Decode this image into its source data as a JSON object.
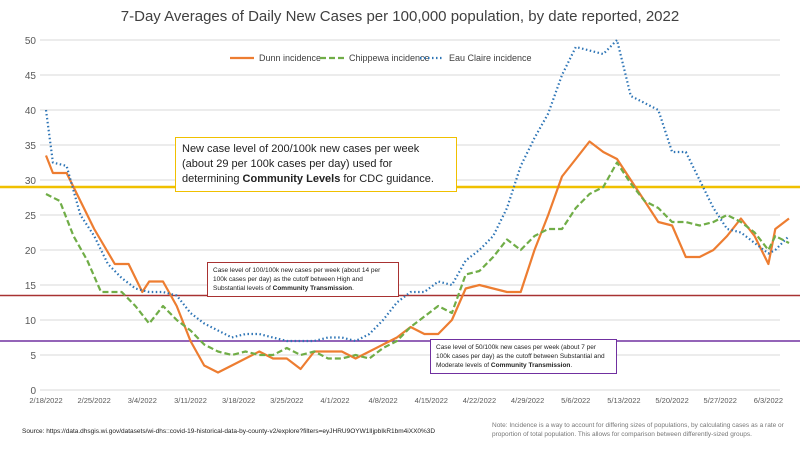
{
  "chart_data": {
    "type": "line",
    "title": "7-Day Averages of Daily New Cases per 100,000 population, by date reported, 2022",
    "xlabel": "",
    "ylabel": "",
    "ylim": [
      0,
      50
    ],
    "yticks": [
      "0",
      "5",
      "10",
      "15",
      "20",
      "25",
      "30",
      "35",
      "40",
      "45",
      "50"
    ],
    "xticks": [
      "2/18/2022",
      "2/25/2022",
      "3/4/2022",
      "3/11/2022",
      "3/18/2022",
      "3/25/2022",
      "4/1/2022",
      "4/8/2022",
      "4/15/2022",
      "4/22/2022",
      "4/29/2022",
      "5/6/2022",
      "5/13/2022",
      "5/20/2022",
      "5/27/2022",
      "6/3/2022"
    ],
    "grid": true,
    "legend_position": "top",
    "series": [
      {
        "name": "Dunn incidence",
        "color": "#ed7d31",
        "style": "solid",
        "points": [
          [
            "2/18",
            33.5
          ],
          [
            "2/19",
            31
          ],
          [
            "2/21",
            31
          ],
          [
            "2/23",
            27
          ],
          [
            "2/25",
            23
          ],
          [
            "2/28",
            18
          ],
          [
            "3/2",
            18
          ],
          [
            "3/4",
            14
          ],
          [
            "3/5",
            15.5
          ],
          [
            "3/7",
            15.5
          ],
          [
            "3/9",
            12
          ],
          [
            "3/11",
            7
          ],
          [
            "3/13",
            3.5
          ],
          [
            "3/15",
            2.5
          ],
          [
            "3/17",
            3.5
          ],
          [
            "3/19",
            4.5
          ],
          [
            "3/21",
            5.5
          ],
          [
            "3/23",
            4.5
          ],
          [
            "3/25",
            4.5
          ],
          [
            "3/27",
            3
          ],
          [
            "3/29",
            5.5
          ],
          [
            "3/31",
            5.5
          ],
          [
            "4/2",
            5.5
          ],
          [
            "4/4",
            4.5
          ],
          [
            "4/6",
            5.5
          ],
          [
            "4/8",
            6.5
          ],
          [
            "4/10",
            7.5
          ],
          [
            "4/12",
            9
          ],
          [
            "4/14",
            8
          ],
          [
            "4/16",
            8
          ],
          [
            "4/18",
            10
          ],
          [
            "4/20",
            14.5
          ],
          [
            "4/22",
            15
          ],
          [
            "4/24",
            14.5
          ],
          [
            "4/26",
            14
          ],
          [
            "4/28",
            14
          ],
          [
            "4/30",
            20
          ],
          [
            "5/2",
            25
          ],
          [
            "5/4",
            30.5
          ],
          [
            "5/6",
            33
          ],
          [
            "5/8",
            35.5
          ],
          [
            "5/10",
            34
          ],
          [
            "5/12",
            33
          ],
          [
            "5/14",
            30
          ],
          [
            "5/16",
            27
          ],
          [
            "5/18",
            24
          ],
          [
            "5/20",
            23.5
          ],
          [
            "5/22",
            19
          ],
          [
            "5/24",
            19
          ],
          [
            "5/26",
            20
          ],
          [
            "5/28",
            22
          ],
          [
            "5/30",
            24.5
          ],
          [
            "6/1",
            22
          ],
          [
            "6/3",
            18
          ],
          [
            "6/4",
            23
          ],
          [
            "6/6",
            24.5
          ]
        ]
      },
      {
        "name": "Chippewa incidence",
        "color": "#70ad47",
        "style": "dashed",
        "points": [
          [
            "2/18",
            28
          ],
          [
            "2/20",
            27
          ],
          [
            "2/22",
            22
          ],
          [
            "2/24",
            18.5
          ],
          [
            "2/26",
            14
          ],
          [
            "3/1",
            14
          ],
          [
            "3/3",
            12
          ],
          [
            "3/5",
            9.5
          ],
          [
            "3/7",
            12
          ],
          [
            "3/9",
            10
          ],
          [
            "3/11",
            8.5
          ],
          [
            "3/13",
            6.5
          ],
          [
            "3/15",
            5.5
          ],
          [
            "3/17",
            5
          ],
          [
            "3/19",
            5.5
          ],
          [
            "3/21",
            5
          ],
          [
            "3/23",
            5
          ],
          [
            "3/25",
            6
          ],
          [
            "3/27",
            5
          ],
          [
            "3/29",
            5.5
          ],
          [
            "3/31",
            4.5
          ],
          [
            "4/2",
            4.5
          ],
          [
            "4/4",
            5
          ],
          [
            "4/6",
            4.5
          ],
          [
            "4/8",
            6
          ],
          [
            "4/10",
            7
          ],
          [
            "4/12",
            9
          ],
          [
            "4/14",
            10.5
          ],
          [
            "4/16",
            12
          ],
          [
            "4/18",
            11
          ],
          [
            "4/20",
            16.5
          ],
          [
            "4/22",
            17
          ],
          [
            "4/24",
            19
          ],
          [
            "4/26",
            21.5
          ],
          [
            "4/28",
            20
          ],
          [
            "4/30",
            22
          ],
          [
            "5/2",
            23
          ],
          [
            "5/4",
            23
          ],
          [
            "5/6",
            26
          ],
          [
            "5/8",
            28
          ],
          [
            "5/10",
            29
          ],
          [
            "5/12",
            32.5
          ],
          [
            "5/14",
            29.5
          ],
          [
            "5/16",
            27
          ],
          [
            "5/18",
            26
          ],
          [
            "5/20",
            24
          ],
          [
            "5/22",
            24
          ],
          [
            "5/24",
            23.5
          ],
          [
            "5/26",
            24
          ],
          [
            "5/28",
            25
          ],
          [
            "5/30",
            24
          ],
          [
            "6/1",
            22.5
          ],
          [
            "6/3",
            20
          ],
          [
            "6/4",
            22
          ],
          [
            "6/6",
            21
          ]
        ]
      },
      {
        "name": "Eau Claire incidence",
        "color": "#2e75b6",
        "style": "dotted",
        "points": [
          [
            "2/18",
            40
          ],
          [
            "2/19",
            32.5
          ],
          [
            "2/21",
            32
          ],
          [
            "2/23",
            25
          ],
          [
            "2/25",
            22
          ],
          [
            "2/27",
            18
          ],
          [
            "3/1",
            16
          ],
          [
            "3/3",
            14.5
          ],
          [
            "3/5",
            14
          ],
          [
            "3/7",
            14
          ],
          [
            "3/9",
            13.5
          ],
          [
            "3/11",
            11
          ],
          [
            "3/13",
            9.5
          ],
          [
            "3/15",
            8.5
          ],
          [
            "3/17",
            7.5
          ],
          [
            "3/19",
            8
          ],
          [
            "3/21",
            8
          ],
          [
            "3/23",
            7.5
          ],
          [
            "3/25",
            7
          ],
          [
            "3/27",
            7
          ],
          [
            "3/29",
            7
          ],
          [
            "3/31",
            7.5
          ],
          [
            "4/2",
            7.5
          ],
          [
            "4/4",
            7
          ],
          [
            "4/6",
            8
          ],
          [
            "4/8",
            10
          ],
          [
            "4/10",
            12.5
          ],
          [
            "4/12",
            14
          ],
          [
            "4/14",
            14
          ],
          [
            "4/16",
            15.5
          ],
          [
            "4/18",
            15
          ],
          [
            "4/20",
            18.5
          ],
          [
            "4/22",
            20
          ],
          [
            "4/24",
            22
          ],
          [
            "4/26",
            26
          ],
          [
            "4/28",
            32
          ],
          [
            "4/30",
            36
          ],
          [
            "5/2",
            39.5
          ],
          [
            "5/4",
            45
          ],
          [
            "5/6",
            49
          ],
          [
            "5/8",
            48.5
          ],
          [
            "5/10",
            48
          ],
          [
            "5/12",
            50
          ],
          [
            "5/14",
            42
          ],
          [
            "5/16",
            41
          ],
          [
            "5/18",
            40
          ],
          [
            "5/20",
            34
          ],
          [
            "5/22",
            34
          ],
          [
            "5/24",
            30
          ],
          [
            "5/26",
            26
          ],
          [
            "5/28",
            23
          ],
          [
            "5/30",
            22.5
          ],
          [
            "6/1",
            21
          ],
          [
            "6/3",
            19.5
          ],
          [
            "6/4",
            20
          ],
          [
            "6/6",
            22
          ]
        ]
      }
    ],
    "reference_lines": [
      {
        "value": 29,
        "color": "#f0c000"
      },
      {
        "value": 13.5,
        "color": "#a83232"
      },
      {
        "value": 7,
        "color": "#7030a0"
      }
    ],
    "annotations": [
      {
        "pre": "New case level of 200/100k new cases per week (about 29 per 100k cases per day) used for determining ",
        "bold": "Community Levels",
        "post": " for CDC guidance.",
        "border": "#f0c000"
      },
      {
        "pre": "Case level of 100/100k new cases per week (about 14 per 100k cases per day) as the cutoff between High and Substantial levels of ",
        "bold": "Community Transmission",
        "post": ".",
        "border": "#a83232"
      },
      {
        "pre": "Case level of 50/100k new cases per week (about 7 per 100k cases per day) as the cutoff between Substantial and Moderate levels of ",
        "bold": "Community Transmission",
        "post": ".",
        "border": "#7030a0"
      }
    ]
  },
  "source": "Source: https://data.dhsgis.wi.gov/datasets/wi-dhs::covid-19-historical-data-by-county-v2/explore?filters=eyJHRU9OYW1lIjpbIkR1bm4iXX0%3D",
  "note": "Note:  Incidence is a way to account for differing sizes of populations, by calculating cases as a rate or proportion of total population.  This allows for comparison between differently-sized groups."
}
